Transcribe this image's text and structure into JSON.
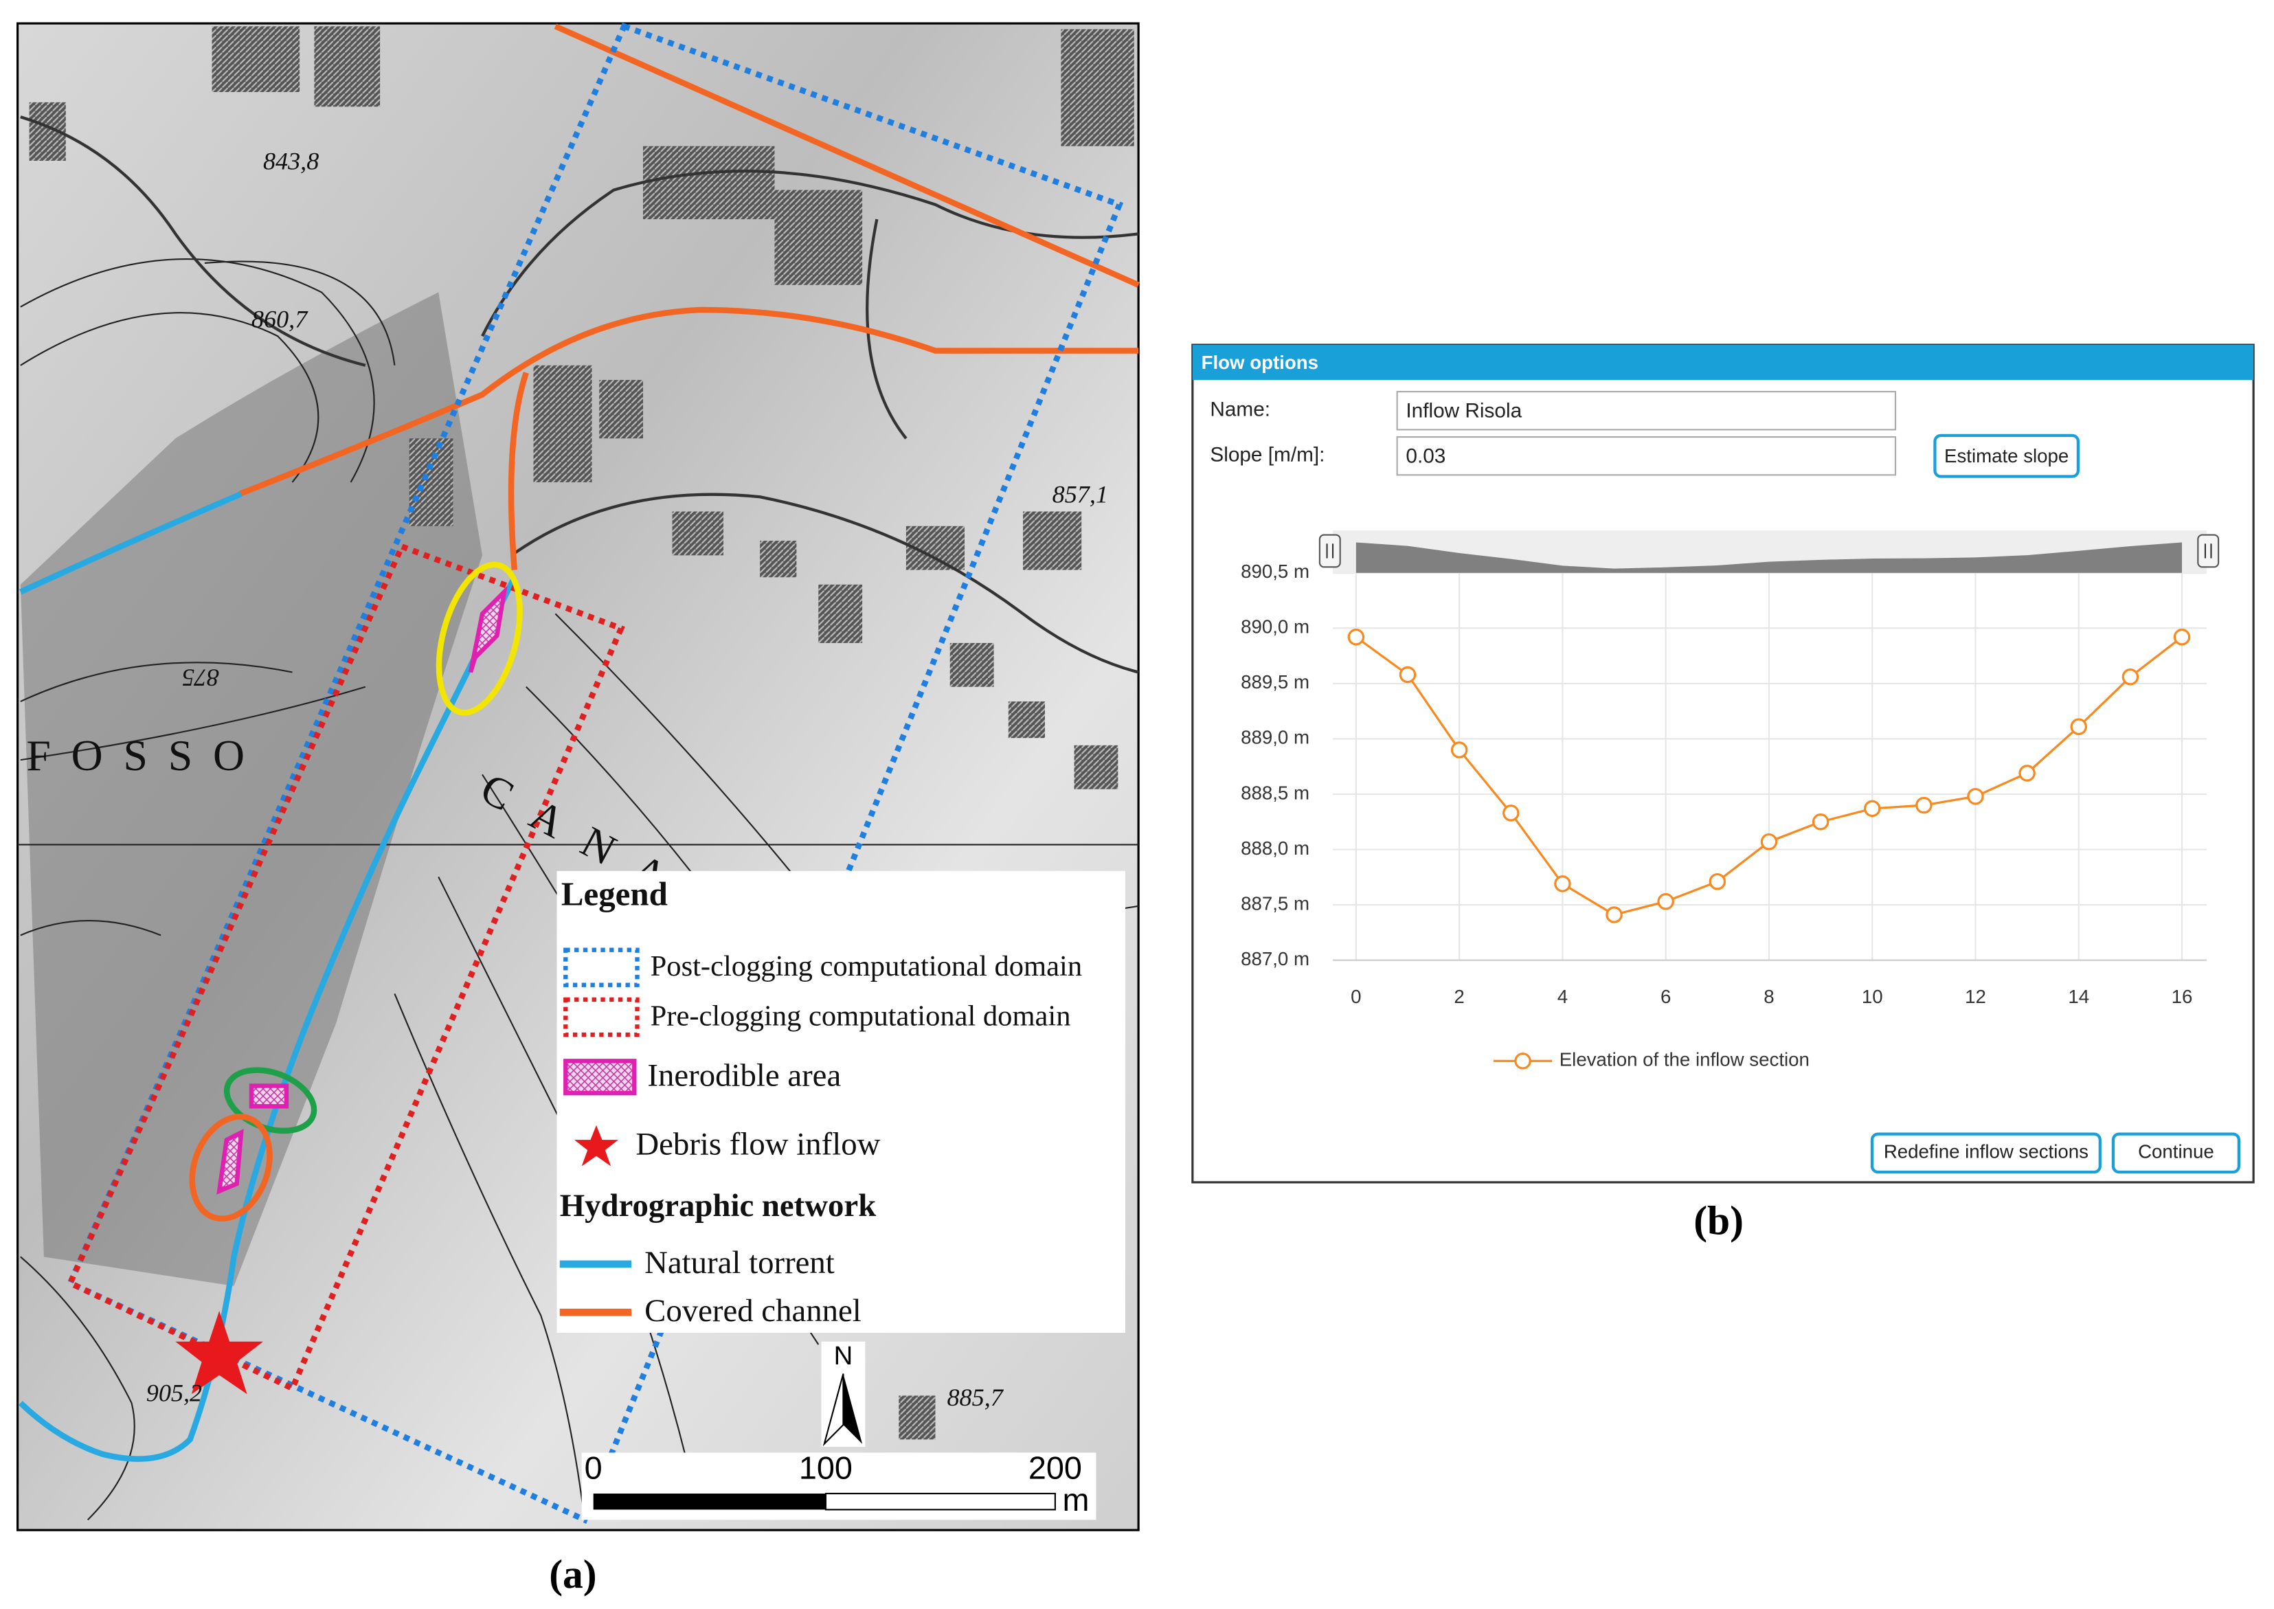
{
  "map": {
    "labels": [
      "843,8",
      "860,7",
      "857,1",
      "875",
      "885,7",
      "905,2",
      "FOSSO",
      "CANALI"
    ],
    "legend": {
      "title": "Legend",
      "items": [
        "Post-clogging computational domain",
        "Pre-clogging computational domain",
        "Inerodible area",
        "Debris flow inflow"
      ],
      "section": "Hydrographic network",
      "lines": [
        "Natural torrent",
        "Covered channel"
      ]
    },
    "north": "N",
    "scale": {
      "ticks": [
        "0",
        "100",
        "200"
      ],
      "unit": "m"
    },
    "caption": "(a)"
  },
  "panel": {
    "title": "Flow options",
    "name_label": "Name:",
    "name_value": "Inflow Risola",
    "slope_label": "Slope [m/m]:",
    "slope_value": "0.03",
    "estimate_button": "Estimate slope",
    "redefine_button": "Redefine inflow sections",
    "continue_button": "Continue",
    "caption": "(b)"
  },
  "chart_data": {
    "type": "line",
    "x": [
      0,
      1,
      2,
      3,
      4,
      5,
      6,
      7,
      8,
      9,
      10,
      11,
      12,
      13,
      14,
      15,
      16
    ],
    "series": [
      {
        "name": "Elevation of the inflow section",
        "color": "#f7891e",
        "values": [
          889.92,
          889.58,
          888.9,
          888.33,
          887.69,
          887.41,
          887.53,
          887.71,
          888.07,
          888.25,
          888.37,
          888.4,
          888.48,
          888.69,
          889.11,
          889.56,
          889.92
        ]
      }
    ],
    "xlim": [
      -0.45,
      16.48
    ],
    "xticks": [
      0,
      2,
      4,
      6,
      8,
      10,
      12,
      14,
      16
    ],
    "ylim": [
      887,
      890.5
    ],
    "yticks": [
      {
        "value": 887,
        "label": "887,0 m"
      },
      {
        "value": 887.5,
        "label": "887,5 m"
      },
      {
        "value": 888,
        "label": "888,0 m"
      },
      {
        "value": 888.5,
        "label": "888,5 m"
      },
      {
        "value": 889,
        "label": "889,0 m"
      },
      {
        "value": 889.5,
        "label": "889,5 m"
      },
      {
        "value": 890,
        "label": "890,0 m"
      },
      {
        "value": 890.5,
        "label": "890,5 m"
      }
    ],
    "grid": true
  }
}
